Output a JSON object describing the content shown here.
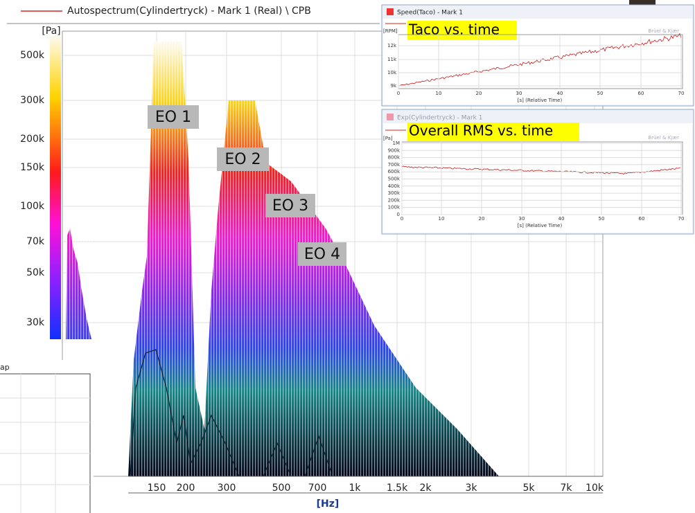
{
  "main_plot": {
    "title": "Autospectrum(Cylindertryck) - Mark 1 (Real) \\ CPB",
    "y_unit": "[Pa]",
    "yticks": [
      "500k",
      "300k",
      "200k",
      "150k",
      "100k",
      "70k",
      "50k",
      "30k"
    ],
    "xticks": [
      "150",
      "200",
      "300",
      "500",
      "700",
      "1k",
      "1.5k",
      "2k",
      "3k",
      "5k",
      "7k",
      "10k"
    ],
    "x_unit": "[Hz]",
    "annotations": [
      "EO 1",
      "EO 2",
      "EO 3",
      "EO 4"
    ]
  },
  "speed_window": {
    "title": "Speed(Taco) - Mark 1",
    "overlay": "Taco vs. time",
    "y_unit": "[RPM]",
    "brand": "Brüel & Kjær",
    "yticks": [
      "12k",
      "11k",
      "10k",
      "9k"
    ],
    "xticks": [
      "0",
      "10",
      "20",
      "30",
      "40",
      "50",
      "60",
      "70"
    ],
    "x_label": "[s] (Relative Time)"
  },
  "rms_window": {
    "title": "Exp(Cylindertryck) - Mark 1",
    "overlay": "Overall RMS vs. time",
    "y_unit": "[Pa]",
    "brand": "Brüel & Kjær",
    "yticks": [
      "1M",
      "900k",
      "800k",
      "700k",
      "600k",
      "500k",
      "400k",
      "300k",
      "200k",
      "100k",
      "0"
    ],
    "xticks": [
      "0",
      "10",
      "20",
      "30",
      "40",
      "50",
      "60",
      "70"
    ],
    "x_label": "[s] (Relative Time)"
  },
  "side_window": {
    "title": "ap"
  }
}
